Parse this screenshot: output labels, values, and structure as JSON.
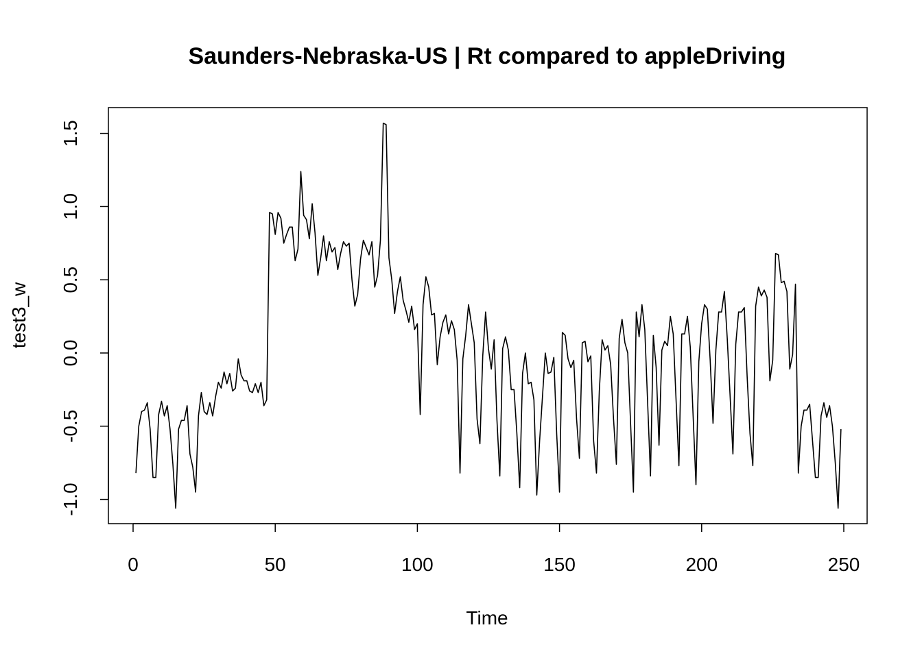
{
  "chart_data": {
    "type": "line",
    "title": "Saunders-Nebraska-US | Rt compared to appleDriving",
    "xlabel": "Time",
    "ylabel": "test3_w",
    "xlim": [
      1,
      248
    ],
    "ylim": [
      -1.07,
      1.57
    ],
    "xticks": [
      0,
      50,
      100,
      150,
      200,
      250
    ],
    "xtick_labels": [
      "0",
      "50",
      "100",
      "150",
      "200",
      "250"
    ],
    "yticks": [
      -1.0,
      -0.5,
      0.0,
      0.5,
      1.0,
      1.5
    ],
    "ytick_labels": [
      "-1.0",
      "-0.5",
      "0.0",
      "0.5",
      "1.0",
      "1.5"
    ],
    "grid": false,
    "line_color": "#000000",
    "series": [
      {
        "x_start": 1,
        "x_step": 1,
        "values": [
          -0.82,
          -0.5,
          -0.4,
          -0.39,
          -0.34,
          -0.52,
          -0.85,
          -0.85,
          -0.42,
          -0.33,
          -0.43,
          -0.36,
          -0.52,
          -0.76,
          -1.06,
          -0.52,
          -0.46,
          -0.46,
          -0.36,
          -0.69,
          -0.78,
          -0.95,
          -0.43,
          -0.27,
          -0.4,
          -0.42,
          -0.34,
          -0.43,
          -0.3,
          -0.2,
          -0.24,
          -0.13,
          -0.21,
          -0.14,
          -0.26,
          -0.24,
          -0.04,
          -0.15,
          -0.19,
          -0.19,
          -0.26,
          -0.27,
          -0.21,
          -0.27,
          -0.2,
          -0.36,
          -0.32,
          0.96,
          0.95,
          0.81,
          0.96,
          0.92,
          0.75,
          0.81,
          0.86,
          0.86,
          0.63,
          0.71,
          1.24,
          0.94,
          0.91,
          0.78,
          1.02,
          0.82,
          0.53,
          0.65,
          0.8,
          0.63,
          0.76,
          0.69,
          0.72,
          0.57,
          0.68,
          0.76,
          0.73,
          0.75,
          0.5,
          0.32,
          0.4,
          0.64,
          0.77,
          0.72,
          0.67,
          0.76,
          0.45,
          0.53,
          0.77,
          1.57,
          1.56,
          0.65,
          0.5,
          0.27,
          0.42,
          0.52,
          0.36,
          0.29,
          0.21,
          0.32,
          0.16,
          0.2,
          -0.42,
          0.33,
          0.52,
          0.45,
          0.26,
          0.27,
          -0.08,
          0.11,
          0.21,
          0.26,
          0.13,
          0.22,
          0.16,
          -0.05,
          -0.82,
          -0.04,
          0.12,
          0.33,
          0.2,
          0.07,
          -0.45,
          -0.62,
          -0.02,
          0.28,
          0.03,
          -0.11,
          0.09,
          -0.46,
          -0.84,
          0.03,
          0.11,
          0.02,
          -0.25,
          -0.25,
          -0.55,
          -0.92,
          -0.14,
          0.0,
          -0.21,
          -0.2,
          -0.32,
          -0.97,
          -0.6,
          -0.3,
          0.0,
          -0.14,
          -0.13,
          -0.03,
          -0.55,
          -0.95,
          0.14,
          0.12,
          -0.04,
          -0.1,
          -0.05,
          -0.45,
          -0.72,
          0.07,
          0.08,
          -0.06,
          -0.02,
          -0.6,
          -0.82,
          -0.26,
          0.09,
          0.02,
          0.05,
          -0.08,
          -0.45,
          -0.76,
          0.1,
          0.23,
          0.07,
          0.0,
          -0.48,
          -0.95,
          0.28,
          0.11,
          0.33,
          0.16,
          -0.34,
          -0.84,
          0.12,
          -0.1,
          -0.63,
          0.02,
          0.08,
          0.05,
          0.25,
          0.13,
          -0.32,
          -0.77,
          0.13,
          0.13,
          0.25,
          0.04,
          -0.43,
          -0.9,
          -0.06,
          0.2,
          0.33,
          0.3,
          -0.05,
          -0.48,
          0.02,
          0.28,
          0.28,
          0.42,
          0.1,
          -0.29,
          -0.69,
          0.06,
          0.28,
          0.28,
          0.31,
          -0.16,
          -0.55,
          -0.77,
          0.32,
          0.45,
          0.39,
          0.43,
          0.38,
          -0.19,
          -0.05,
          0.68,
          0.67,
          0.48,
          0.49,
          0.42,
          -0.11,
          -0.01,
          0.47,
          -0.82,
          -0.5,
          -0.39,
          -0.39,
          -0.35,
          -0.6,
          -0.85,
          -0.85,
          -0.43,
          -0.34,
          -0.44,
          -0.36,
          -0.5,
          -0.75,
          -1.06,
          -0.52
        ]
      }
    ]
  }
}
